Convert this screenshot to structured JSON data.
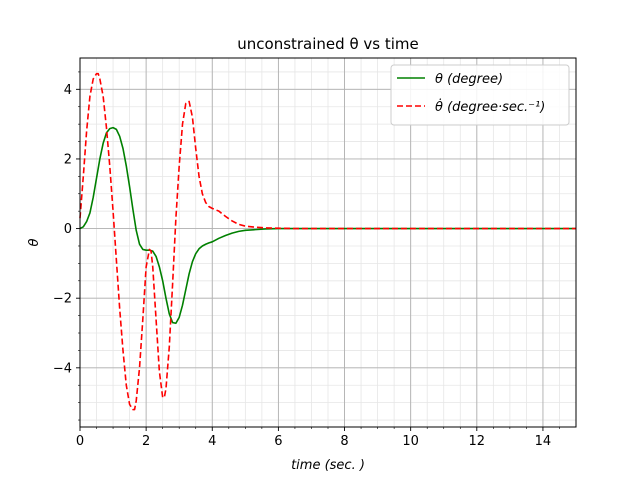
{
  "chart_data": {
    "type": "line",
    "title": "unconstrained θ vs time",
    "xlabel": "time (sec. )",
    "ylabel": "θ",
    "xlim": [
      0,
      15
    ],
    "ylim": [
      -5.7,
      4.9
    ],
    "xticks": [
      0,
      2,
      4,
      6,
      8,
      10,
      12,
      14
    ],
    "yticks": [
      -4,
      -2,
      0,
      2,
      4
    ],
    "grid": "major and minor",
    "legend_position": "top-right",
    "series": [
      {
        "name": "θ (degree)",
        "color": "#008000",
        "style": "solid",
        "x": [
          0,
          0.1,
          0.2,
          0.3,
          0.4,
          0.5,
          0.6,
          0.7,
          0.8,
          0.9,
          1.0,
          1.1,
          1.2,
          1.3,
          1.4,
          1.5,
          1.6,
          1.7,
          1.8,
          1.9,
          2.0,
          2.1,
          2.2,
          2.3,
          2.4,
          2.5,
          2.6,
          2.7,
          2.8,
          2.9,
          3.0,
          3.1,
          3.2,
          3.3,
          3.4,
          3.5,
          3.6,
          3.7,
          3.8,
          3.9,
          4.0,
          4.2,
          4.4,
          4.6,
          4.8,
          5.0,
          5.3,
          5.6,
          6.0,
          6.5,
          7.0,
          8,
          9,
          10,
          11,
          12,
          13,
          14,
          15
        ],
        "y": [
          0.0,
          0.05,
          0.2,
          0.45,
          0.9,
          1.45,
          2.0,
          2.45,
          2.75,
          2.87,
          2.9,
          2.85,
          2.65,
          2.3,
          1.8,
          1.2,
          0.55,
          -0.05,
          -0.45,
          -0.6,
          -0.62,
          -0.62,
          -0.65,
          -0.8,
          -1.1,
          -1.5,
          -2.0,
          -2.45,
          -2.7,
          -2.72,
          -2.55,
          -2.2,
          -1.75,
          -1.3,
          -0.95,
          -0.72,
          -0.58,
          -0.5,
          -0.45,
          -0.41,
          -0.38,
          -0.28,
          -0.2,
          -0.13,
          -0.08,
          -0.05,
          -0.03,
          -0.01,
          0.0,
          0.0,
          0.0,
          0.0,
          0.0,
          0.0,
          0.0,
          0.0,
          0.0,
          0.0,
          0.0
        ]
      },
      {
        "name": "θ̇ (degree·sec.⁻¹)",
        "color": "#ff0000",
        "style": "dashed",
        "x": [
          0,
          0.1,
          0.2,
          0.3,
          0.4,
          0.5,
          0.55,
          0.6,
          0.7,
          0.8,
          0.9,
          1.0,
          1.1,
          1.2,
          1.3,
          1.4,
          1.5,
          1.6,
          1.65,
          1.7,
          1.8,
          1.9,
          2.0,
          2.1,
          2.15,
          2.2,
          2.3,
          2.4,
          2.5,
          2.55,
          2.6,
          2.7,
          2.8,
          2.9,
          3.0,
          3.1,
          3.2,
          3.3,
          3.4,
          3.5,
          3.6,
          3.7,
          3.8,
          3.9,
          4.0,
          4.2,
          4.4,
          4.6,
          4.8,
          5.0,
          5.3,
          5.6,
          6.0,
          6.5,
          7.0,
          8,
          9,
          10,
          11,
          12,
          13,
          14,
          15
        ],
        "y": [
          0.3,
          1.5,
          2.8,
          3.8,
          4.3,
          4.45,
          4.45,
          4.3,
          3.8,
          2.9,
          1.8,
          0.5,
          -0.9,
          -2.3,
          -3.5,
          -4.5,
          -5.05,
          -5.2,
          -5.2,
          -4.95,
          -4.0,
          -2.6,
          -1.1,
          -0.6,
          -0.65,
          -1.1,
          -2.6,
          -4.1,
          -4.85,
          -4.85,
          -4.6,
          -3.4,
          -1.6,
          0.3,
          1.8,
          3.0,
          3.6,
          3.65,
          3.2,
          2.3,
          1.5,
          1.0,
          0.75,
          0.63,
          0.58,
          0.5,
          0.35,
          0.22,
          0.12,
          0.07,
          0.04,
          0.02,
          0.01,
          0.0,
          0.0,
          0.0,
          0.0,
          0.0,
          0.0,
          0.0,
          0.0,
          0.0,
          0.0
        ]
      }
    ]
  }
}
